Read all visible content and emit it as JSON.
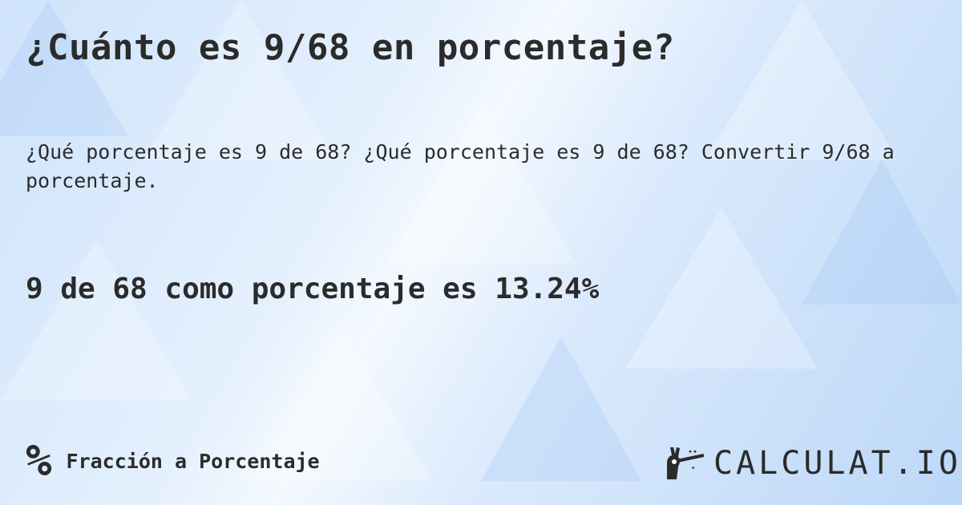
{
  "title": "¿Cuánto es 9/68 en porcentaje?",
  "description": "¿Qué porcentaje es 9 de 68? ¿Qué porcentaje es 9 de 68? Convertir 9/68 a porcentaje.",
  "answer": "9 de 68 como porcentaje es 13.24%",
  "footer": {
    "icon": "percent-icon",
    "icon_glyph": "%",
    "category": "Fracción a Porcentaje"
  },
  "logo": {
    "text": "CALCULAT.IO",
    "icon": "magic-hand-wand-icon"
  }
}
